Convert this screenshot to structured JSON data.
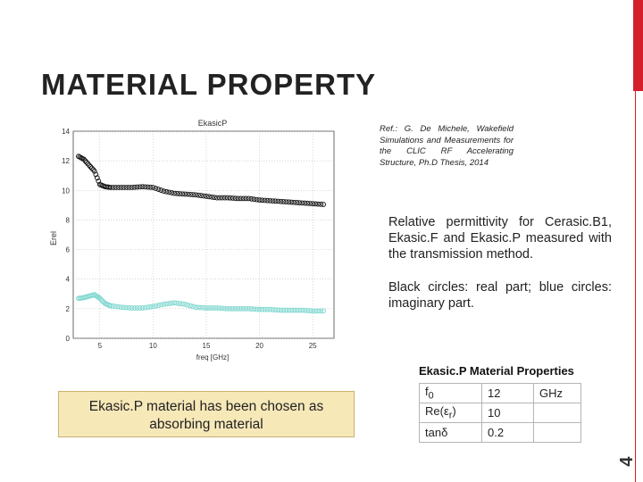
{
  "slide": {
    "title": "MATERIAL PROPERTY",
    "page_number": "4",
    "reference": "Ref.: G. De Michele, Wakefield Simulations and Measurements for the CLIC RF Accelerating Structure, Ph.D Thesis, 2014",
    "description_1": "Relative permittivity for Cerasic.B1, Ekasic.F and Ekasic.P measured with the transmission method.",
    "description_2": "Black circles: real part; blue circles: imaginary part.",
    "callout": "Ekasic.P material has been chosen as absorbing material",
    "accent_color": "#d4202a",
    "callout_color": "#f7e8b8"
  },
  "table": {
    "title": "Ekasic.P Material Properties",
    "rows": [
      {
        "label": "f0",
        "value": "12",
        "unit": "GHz"
      },
      {
        "label": "Re(εr)",
        "value": "10",
        "unit": ""
      },
      {
        "label": "tanδ",
        "value": "0.2",
        "unit": ""
      }
    ]
  },
  "chart_data": {
    "type": "scatter",
    "title": "EkasicP",
    "xlabel": "freq [GHz]",
    "ylabel": "Erel",
    "xlim": [
      2.5,
      27
    ],
    "ylim": [
      0,
      14
    ],
    "xticks": [
      5,
      10,
      15,
      20,
      25
    ],
    "yticks": [
      0,
      2,
      4,
      6,
      8,
      10,
      12,
      14
    ],
    "tick_labels_y": [
      "0",
      "2",
      "4",
      "6",
      "8",
      "10",
      "12",
      "14"
    ],
    "tick_labels_x": [
      "5",
      "10",
      "15",
      "20",
      "25"
    ],
    "grid": true,
    "series": [
      {
        "color": "#1a1a1a",
        "x": [
          3,
          3.5,
          4,
          4.5,
          5,
          5.5,
          6,
          7,
          8,
          9,
          10,
          11,
          12,
          13,
          14,
          15,
          16,
          17,
          18,
          19,
          20,
          21,
          22,
          23,
          24,
          25,
          26
        ],
        "y": [
          12.3,
          12.1,
          11.7,
          11.3,
          10.4,
          10.25,
          10.2,
          10.2,
          10.2,
          10.25,
          10.2,
          9.95,
          9.8,
          9.75,
          9.7,
          9.6,
          9.5,
          9.5,
          9.45,
          9.45,
          9.35,
          9.3,
          9.25,
          9.2,
          9.15,
          9.1,
          9.05
        ]
      },
      {
        "color": "#80d8d0",
        "x": [
          3,
          3.5,
          4,
          4.5,
          5,
          5.5,
          6,
          7,
          8,
          9,
          10,
          11,
          12,
          13,
          14,
          15,
          16,
          17,
          18,
          19,
          20,
          21,
          22,
          23,
          24,
          25,
          26
        ],
        "y": [
          2.7,
          2.75,
          2.85,
          2.95,
          2.7,
          2.35,
          2.2,
          2.1,
          2.05,
          2.05,
          2.15,
          2.3,
          2.4,
          2.3,
          2.1,
          2.05,
          2.05,
          2.0,
          2.0,
          2.0,
          1.95,
          1.95,
          1.9,
          1.9,
          1.9,
          1.85,
          1.85
        ]
      }
    ]
  }
}
